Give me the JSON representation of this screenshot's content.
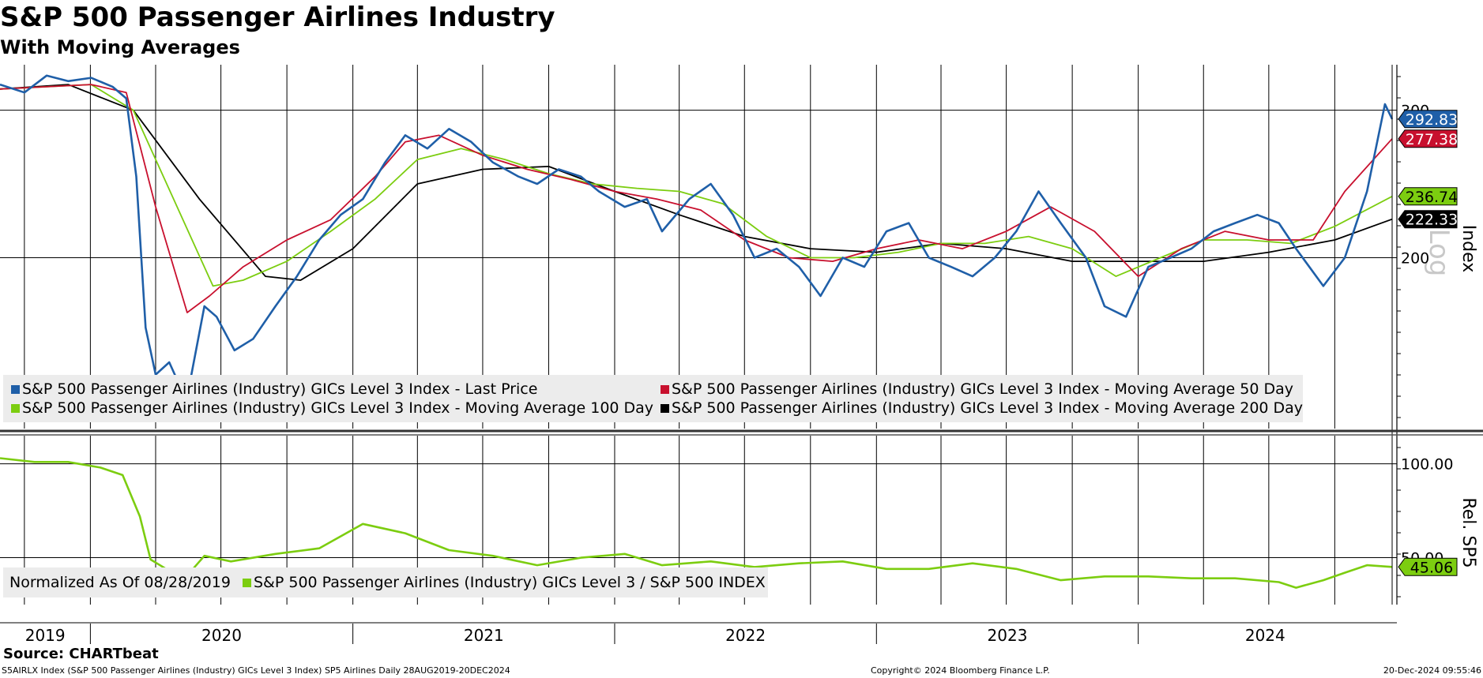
{
  "header": {
    "title": "S&P 500 Passenger Airlines Industry",
    "subtitle": "With Moving Averages"
  },
  "footer": {
    "source": "Source: CHARTbeat",
    "left": "S5AIRLX Index (S&P 500 Passenger Airlines (Industry) GICs Level 3 Index) SP5 Airlines  Daily 28AUG2019-20DEC2024",
    "copyright": "Copyright© 2024 Bloomberg Finance L.P.",
    "timestamp": "20-Dec-2024 09:55:46"
  },
  "legend_top": {
    "last_price": "S&P 500 Passenger Airlines (Industry) GICs Level 3 Index - Last Price",
    "ma50": "S&P 500 Passenger Airlines (Industry) GICs Level 3 Index - Moving Average 50 Day",
    "ma100": "S&P 500 Passenger Airlines (Industry) GICs Level 3 Index - Moving Average 100 Day",
    "ma200": "S&P 500 Passenger Airlines (Industry) GICs Level 3 Index - Moving Average 200 Day"
  },
  "legend_bottom": {
    "normalized": "Normalized As Of 08/28/2019",
    "relative": "S&P 500 Passenger Airlines (Industry) GICs Level 3 / S&P 500 INDEX"
  },
  "colors": {
    "last_price": "#1f5fa8",
    "ma50": "#c8102e",
    "ma100": "#7ccd10",
    "ma200": "#000000",
    "relative": "#7ccd10"
  },
  "chart_data": [
    {
      "type": "line",
      "title": "S&P 500 Passenger Airlines Industry",
      "subtitle": "With Moving Averages",
      "ylabel": "Index",
      "scale": "log",
      "scale_watermark": "Log",
      "ylim": [
        125,
        340
      ],
      "y_ticks": [
        200,
        300
      ],
      "x_ticks": [
        "2019",
        "2020",
        "2021",
        "2022",
        "2023",
        "2024"
      ],
      "xlim": [
        "2019-08-28",
        "2024-12-20"
      ],
      "grid": true,
      "legend_position": "lower-left",
      "last_values": {
        "Last Price": 292.83,
        "MA 50": 277.38,
        "MA 100": 236.74,
        "MA 200": 222.33
      },
      "last_value_labels": [
        "292.83",
        "277.38",
        "236.74",
        "222.33"
      ],
      "series": [
        {
          "name": "S&P 500 Passenger Airlines (Industry) GICs Level 3 Index - Last Price",
          "color": "#1f5fa8",
          "x": [
            "2019-08-28",
            "2019-10-01",
            "2019-11-01",
            "2019-12-01",
            "2020-01-02",
            "2020-02-01",
            "2020-02-20",
            "2020-03-05",
            "2020-03-18",
            "2020-04-01",
            "2020-04-20",
            "2020-05-14",
            "2020-06-08",
            "2020-06-25",
            "2020-07-20",
            "2020-08-15",
            "2020-09-15",
            "2020-10-15",
            "2020-11-15",
            "2020-12-15",
            "2021-01-15",
            "2021-02-15",
            "2021-03-15",
            "2021-04-15",
            "2021-05-15",
            "2021-06-15",
            "2021-07-15",
            "2021-08-20",
            "2021-09-15",
            "2021-10-15",
            "2021-11-15",
            "2021-12-10",
            "2022-01-15",
            "2022-02-15",
            "2022-03-08",
            "2022-04-15",
            "2022-05-15",
            "2022-06-15",
            "2022-07-15",
            "2022-08-15",
            "2022-09-15",
            "2022-10-15",
            "2022-11-15",
            "2022-12-15",
            "2023-01-15",
            "2023-02-15",
            "2023-03-15",
            "2023-04-15",
            "2023-05-15",
            "2023-06-15",
            "2023-07-15",
            "2023-08-15",
            "2023-09-15",
            "2023-10-20",
            "2023-11-15",
            "2023-12-15",
            "2024-01-15",
            "2024-02-15",
            "2024-03-15",
            "2024-04-15",
            "2024-05-15",
            "2024-06-15",
            "2024-07-15",
            "2024-08-08",
            "2024-09-15",
            "2024-10-15",
            "2024-11-15",
            "2024-12-01",
            "2024-12-10",
            "2024-12-20"
          ],
          "values": [
            322,
            315,
            330,
            325,
            328,
            320,
            310,
            250,
            165,
            145,
            150,
            135,
            175,
            170,
            155,
            160,
            175,
            190,
            210,
            225,
            235,
            260,
            280,
            270,
            285,
            275,
            260,
            250,
            245,
            255,
            250,
            240,
            230,
            235,
            215,
            235,
            245,
            225,
            200,
            205,
            195,
            180,
            200,
            195,
            215,
            220,
            200,
            195,
            190,
            200,
            215,
            240,
            220,
            200,
            175,
            170,
            195,
            200,
            205,
            215,
            220,
            225,
            220,
            205,
            185,
            200,
            240,
            280,
            305,
            292.83
          ]
        },
        {
          "name": "S&P 500 Passenger Airlines (Industry) GICs Level 3 Index - Moving Average 50 Day",
          "color": "#c8102e",
          "x": [
            "2019-08-28",
            "2019-11-01",
            "2020-01-02",
            "2020-02-20",
            "2020-04-01",
            "2020-05-15",
            "2020-06-15",
            "2020-08-01",
            "2020-10-01",
            "2020-12-01",
            "2021-02-01",
            "2021-03-15",
            "2021-05-01",
            "2021-07-01",
            "2021-09-01",
            "2021-11-01",
            "2022-01-01",
            "2022-03-01",
            "2022-05-01",
            "2022-07-01",
            "2022-09-01",
            "2022-11-01",
            "2023-01-01",
            "2023-03-01",
            "2023-05-01",
            "2023-07-01",
            "2023-09-01",
            "2023-11-01",
            "2024-01-01",
            "2024-03-01",
            "2024-05-01",
            "2024-07-01",
            "2024-09-01",
            "2024-10-15",
            "2024-12-20"
          ],
          "values": [
            318,
            320,
            322,
            315,
            230,
            172,
            180,
            195,
            210,
            222,
            250,
            275,
            280,
            265,
            255,
            248,
            240,
            235,
            228,
            210,
            200,
            198,
            205,
            210,
            205,
            215,
            230,
            215,
            190,
            205,
            215,
            210,
            210,
            240,
            277.38
          ]
        },
        {
          "name": "S&P 500 Passenger Airlines (Industry) GICs Level 3 Index - Moving Average 100 Day",
          "color": "#7ccd10",
          "x": [
            "2019-08-28",
            "2019-11-01",
            "2020-01-02",
            "2020-03-01",
            "2020-05-01",
            "2020-06-20",
            "2020-08-01",
            "2020-10-01",
            "2020-12-01",
            "2021-02-01",
            "2021-04-01",
            "2021-06-01",
            "2021-08-01",
            "2021-10-01",
            "2021-12-01",
            "2022-02-01",
            "2022-04-01",
            "2022-06-01",
            "2022-08-01",
            "2022-10-01",
            "2022-12-01",
            "2023-02-01",
            "2023-04-01",
            "2023-06-01",
            "2023-08-01",
            "2023-10-01",
            "2023-12-01",
            "2024-02-01",
            "2024-04-01",
            "2024-06-01",
            "2024-08-01",
            "2024-10-01",
            "2024-12-20"
          ],
          "values": [
            318,
            320,
            322,
            300,
            230,
            185,
            188,
            198,
            215,
            235,
            262,
            270,
            262,
            252,
            245,
            242,
            240,
            232,
            212,
            200,
            200,
            203,
            208,
            208,
            212,
            205,
            190,
            200,
            210,
            210,
            208,
            218,
            236.74
          ]
        },
        {
          "name": "S&P 500 Passenger Airlines (Industry) GICs Level 3 Index - Moving Average 200 Day",
          "color": "#000000",
          "x": [
            "2019-08-28",
            "2019-12-01",
            "2020-03-01",
            "2020-06-01",
            "2020-09-01",
            "2020-10-20",
            "2021-01-01",
            "2021-04-01",
            "2021-07-01",
            "2021-10-01",
            "2022-01-01",
            "2022-04-01",
            "2022-07-01",
            "2022-10-01",
            "2023-01-01",
            "2023-04-01",
            "2023-07-01",
            "2023-10-01",
            "2024-01-01",
            "2024-04-01",
            "2024-07-01",
            "2024-10-01",
            "2024-12-20"
          ],
          "values": [
            318,
            322,
            300,
            235,
            190,
            188,
            205,
            245,
            255,
            257,
            240,
            225,
            212,
            205,
            203,
            208,
            205,
            198,
            198,
            198,
            203,
            210,
            222.33
          ]
        }
      ]
    },
    {
      "type": "line",
      "ylabel": "Rel. SP5",
      "y_ticks": [
        50,
        100
      ],
      "ylim": [
        25,
        115
      ],
      "x_ticks": [
        "2019",
        "2020",
        "2021",
        "2022",
        "2023",
        "2024"
      ],
      "xlim": [
        "2019-08-28",
        "2024-12-20"
      ],
      "grid": true,
      "legend_position": "lower-left",
      "last_values": {
        "Relative": 45.06
      },
      "last_value_labels": [
        "45.06"
      ],
      "series": [
        {
          "name": "S&P 500 Passenger Airlines (Industry) GICs Level 3 / S&P 500 INDEX",
          "color": "#7ccd10",
          "x": [
            "2019-08-28",
            "2019-10-15",
            "2019-12-01",
            "2020-01-15",
            "2020-02-15",
            "2020-03-10",
            "2020-03-25",
            "2020-04-20",
            "2020-05-14",
            "2020-06-08",
            "2020-07-15",
            "2020-09-15",
            "2020-11-15",
            "2021-01-15",
            "2021-03-15",
            "2021-05-15",
            "2021-07-15",
            "2021-09-15",
            "2021-11-15",
            "2022-01-15",
            "2022-03-08",
            "2022-05-15",
            "2022-07-15",
            "2022-09-15",
            "2022-11-15",
            "2023-01-15",
            "2023-03-15",
            "2023-05-15",
            "2023-07-15",
            "2023-09-15",
            "2023-11-15",
            "2024-01-15",
            "2024-03-15",
            "2024-05-15",
            "2024-07-15",
            "2024-08-08",
            "2024-09-15",
            "2024-10-15",
            "2024-11-15",
            "2024-12-20"
          ],
          "values": [
            103,
            101,
            101,
            98,
            94,
            72,
            49,
            43,
            40,
            51,
            48,
            52,
            55,
            68,
            63,
            54,
            51,
            46,
            50,
            52,
            46,
            48,
            45,
            47,
            48,
            44,
            44,
            47,
            44,
            38,
            40,
            40,
            39,
            39,
            37,
            34,
            38,
            42,
            46,
            45.06
          ]
        }
      ]
    }
  ]
}
